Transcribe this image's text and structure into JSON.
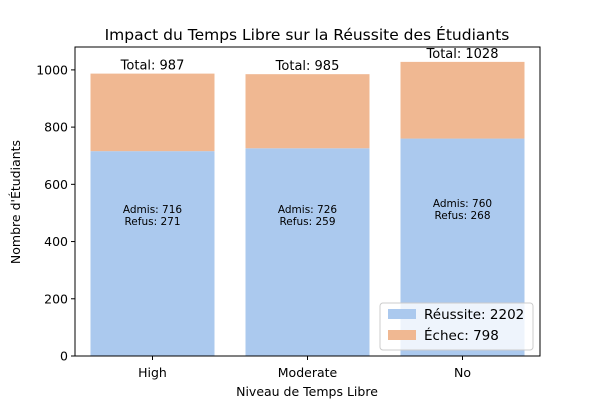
{
  "chart_data": {
    "type": "bar",
    "stacked": true,
    "title": "Impact du Temps Libre sur la Réussite des Étudiants",
    "xlabel": "Niveau de Temps Libre",
    "ylabel": "Nombre d'Étudiants",
    "categories": [
      "High",
      "Moderate",
      "No"
    ],
    "ylim": [
      0,
      1080
    ],
    "yticks": [
      0,
      200,
      400,
      600,
      800,
      1000
    ],
    "series": [
      {
        "name": "Réussite",
        "values": [
          716,
          726,
          760
        ],
        "color": "#abc9ee"
      },
      {
        "name": "Échec",
        "values": [
          271,
          259,
          268
        ],
        "color": "#f0b892"
      }
    ],
    "totals": [
      "Total: 987",
      "Total: 985",
      "Total: 1028"
    ],
    "inner_labels": [
      [
        "Admis: 716",
        "Refus: 271"
      ],
      [
        "Admis: 726",
        "Refus: 259"
      ],
      [
        "Admis: 760",
        "Refus: 268"
      ]
    ],
    "legend": {
      "placement": "lower-right",
      "entries": [
        "Réussite: 2202",
        "Échec: 798"
      ]
    },
    "grid": false
  }
}
